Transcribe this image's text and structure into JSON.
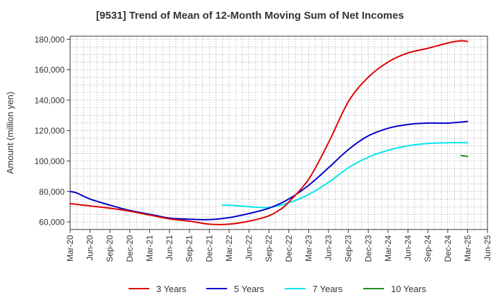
{
  "chart_data": {
    "type": "line",
    "title": "[9531]  Trend of Mean of 12-Month Moving Sum of Net Incomes",
    "xlabel": "",
    "ylabel": "Amount (million yen)",
    "ylim": [
      55000,
      182000
    ],
    "yticks": [
      60000,
      80000,
      100000,
      120000,
      140000,
      160000,
      180000
    ],
    "ytick_labels": [
      "60,000",
      "80,000",
      "100,000",
      "120,000",
      "140,000",
      "160,000",
      "180,000"
    ],
    "xtick_labels": [
      "Mar-20",
      "Jun-20",
      "Sep-20",
      "Dec-20",
      "Mar-21",
      "Jun-21",
      "Sep-21",
      "Dec-21",
      "Mar-22",
      "Jun-22",
      "Sep-22",
      "Dec-22",
      "Mar-23",
      "Jun-23",
      "Sep-23",
      "Dec-23",
      "Mar-24",
      "Jun-24",
      "Sep-24",
      "Dec-24",
      "Mar-25",
      "Jun-25"
    ],
    "x_unit": "month",
    "x_start": "Mar-20",
    "x_end": "Jun-25",
    "grid": true,
    "legend_position": "bottom",
    "series": [
      {
        "name": "3 Years",
        "color": "#dd0000",
        "x": [
          "Mar-20",
          "Jun-20",
          "Sep-20",
          "Dec-20",
          "Mar-21",
          "Jun-21",
          "Sep-21",
          "Dec-21",
          "Mar-22",
          "Jun-22",
          "Sep-22",
          "Nov-22",
          "Dec-22",
          "Mar-23",
          "Jun-23",
          "Sep-23",
          "Dec-23",
          "Mar-24",
          "Jun-24",
          "Sep-24",
          "Dec-24",
          "Feb-25",
          "Mar-25"
        ],
        "values": [
          72000,
          70500,
          69000,
          67000,
          64500,
          62000,
          60500,
          58500,
          58500,
          60500,
          64000,
          69000,
          73000,
          88000,
          112000,
          139000,
          155000,
          165000,
          171000,
          174000,
          177500,
          179000,
          178500
        ]
      },
      {
        "name": "5 Years",
        "color": "#0000cc",
        "x": [
          "Mar-20",
          "Apr-20",
          "Jun-20",
          "Sep-20",
          "Dec-20",
          "Mar-21",
          "Jun-21",
          "Sep-21",
          "Dec-21",
          "Mar-22",
          "Jun-22",
          "Sep-22",
          "Dec-22",
          "Mar-23",
          "Jun-23",
          "Sep-23",
          "Dec-23",
          "Mar-24",
          "Jun-24",
          "Sep-24",
          "Dec-24",
          "Mar-25"
        ],
        "values": [
          80000,
          79000,
          75000,
          71000,
          67500,
          65000,
          62500,
          61800,
          61500,
          62800,
          65500,
          69000,
          75000,
          84000,
          95500,
          107500,
          116500,
          121500,
          124000,
          124900,
          124900,
          126000
        ]
      },
      {
        "name": "7 Years",
        "color": "#00e5ee",
        "x": [
          "Feb-22",
          "Mar-22",
          "Jun-22",
          "Sep-22",
          "Dec-22",
          "Mar-23",
          "Jun-23",
          "Sep-23",
          "Dec-23",
          "Mar-24",
          "Jun-24",
          "Sep-24",
          "Dec-24",
          "Mar-25"
        ],
        "values": [
          71000,
          71000,
          70000,
          69500,
          72500,
          78000,
          86000,
          95500,
          102500,
          107000,
          110000,
          111500,
          112000,
          112000
        ]
      },
      {
        "name": "10 Years",
        "color": "#228822",
        "x": [
          "Feb-25",
          "Mar-25"
        ],
        "values": [
          103500,
          103000
        ]
      }
    ]
  }
}
